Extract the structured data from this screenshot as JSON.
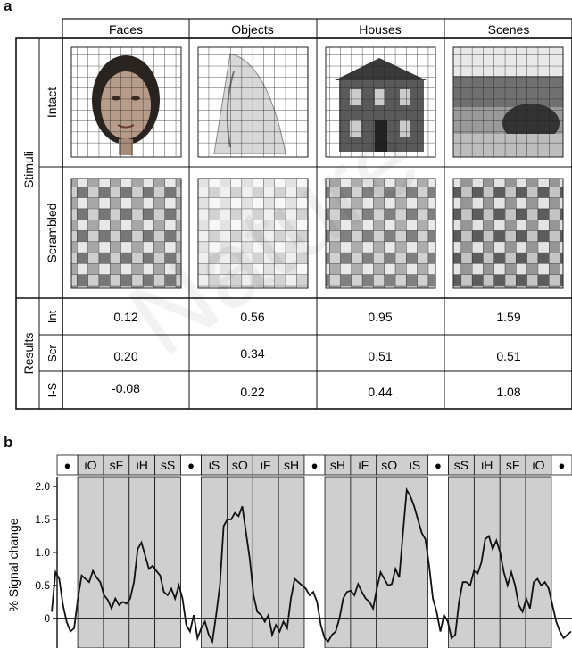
{
  "panel_a": {
    "label": "a",
    "columns": [
      "Faces",
      "Objects",
      "Houses",
      "Scenes"
    ],
    "group_stimuli": "Stimuli",
    "group_results": "Results",
    "row_intact": "Intact",
    "row_scrambled": "Scrambled",
    "result_rows": [
      {
        "label": "Int",
        "values": [
          "0.12",
          "0.56",
          "0.95",
          "1.59"
        ]
      },
      {
        "label": "Scr",
        "values": [
          "0.20",
          "0.34",
          "0.51",
          "0.51"
        ]
      },
      {
        "label": "I-S",
        "values": [
          "-0.08",
          "0.22",
          "0.44",
          "1.08"
        ]
      }
    ],
    "watermark": "Nature"
  },
  "panel_b": {
    "label": "b",
    "ylabel": "% Signal change",
    "yticks": [
      "0",
      "0.5",
      "1.0",
      "1.5",
      "2.0"
    ],
    "blocks": [
      {
        "type": "fix",
        "label": "●"
      },
      {
        "type": "stim",
        "label": "iO"
      },
      {
        "type": "stim",
        "label": "sF"
      },
      {
        "type": "stim",
        "label": "iH"
      },
      {
        "type": "stim",
        "label": "sS"
      },
      {
        "type": "fix",
        "label": "●"
      },
      {
        "type": "stim",
        "label": "iS"
      },
      {
        "type": "stim",
        "label": "sO"
      },
      {
        "type": "stim",
        "label": "iF"
      },
      {
        "type": "stim",
        "label": "sH"
      },
      {
        "type": "fix",
        "label": "●"
      },
      {
        "type": "stim",
        "label": "sH"
      },
      {
        "type": "stim",
        "label": "iF"
      },
      {
        "type": "stim",
        "label": "sO"
      },
      {
        "type": "stim",
        "label": "iS"
      },
      {
        "type": "fix",
        "label": "●"
      },
      {
        "type": "stim",
        "label": "sS"
      },
      {
        "type": "stim",
        "label": "iH"
      },
      {
        "type": "stim",
        "label": "sF"
      },
      {
        "type": "stim",
        "label": "iO"
      },
      {
        "type": "fix",
        "label": "●"
      }
    ]
  },
  "chart_data": {
    "type": "line",
    "title": "",
    "xlabel": "",
    "ylabel": "% Signal change",
    "ylim": [
      -0.45,
      2.15
    ],
    "yticks": [
      0,
      0.5,
      1.0,
      1.5,
      2.0
    ],
    "grid": false,
    "series": [
      {
        "values": [
          0.1,
          0.7,
          0.6,
          0.2,
          -0.05,
          -0.2,
          -0.15,
          0.3,
          0.65,
          0.6,
          0.55,
          0.72,
          0.62,
          0.55,
          0.35,
          0.28,
          0.15,
          0.3,
          0.2,
          0.25,
          0.22,
          0.3,
          0.55,
          1.05,
          1.15,
          0.95,
          0.75,
          0.8,
          0.72,
          0.65,
          0.4,
          0.35,
          0.45,
          0.3,
          0.5,
          0.3,
          -0.1,
          -0.2,
          0.05,
          -0.3,
          -0.15,
          -0.05,
          -0.25,
          -0.35,
          0.05,
          0.5,
          1.4,
          1.5,
          1.5,
          1.6,
          1.55,
          1.7,
          1.3,
          0.9,
          0.35,
          0.1,
          0.05,
          -0.05,
          0.05,
          -0.25,
          -0.1,
          -0.2,
          -0.05,
          -0.15,
          0.3,
          0.6,
          0.55,
          0.5,
          0.45,
          0.35,
          0.4,
          0.25,
          -0.1,
          -0.3,
          -0.35,
          -0.25,
          -0.2,
          0.0,
          0.3,
          0.4,
          0.42,
          0.35,
          0.52,
          0.4,
          0.3,
          0.25,
          0.15,
          0.45,
          0.7,
          0.6,
          0.5,
          0.52,
          0.75,
          0.62,
          1.3,
          1.95,
          1.85,
          1.7,
          1.5,
          1.3,
          1.2,
          0.8,
          0.3,
          0.1,
          -0.2,
          0.05,
          -0.05,
          -0.3,
          -0.25,
          0.25,
          0.55,
          0.55,
          0.5,
          0.72,
          0.68,
          0.85,
          1.2,
          1.25,
          1.05,
          1.18,
          1.0,
          0.7,
          0.5,
          0.7,
          0.5,
          0.2,
          0.1,
          0.3,
          0.15,
          0.55,
          0.6,
          0.5,
          0.55,
          0.45,
          0.2,
          -0.05,
          -0.2,
          -0.3,
          -0.25,
          -0.2
        ]
      }
    ]
  }
}
